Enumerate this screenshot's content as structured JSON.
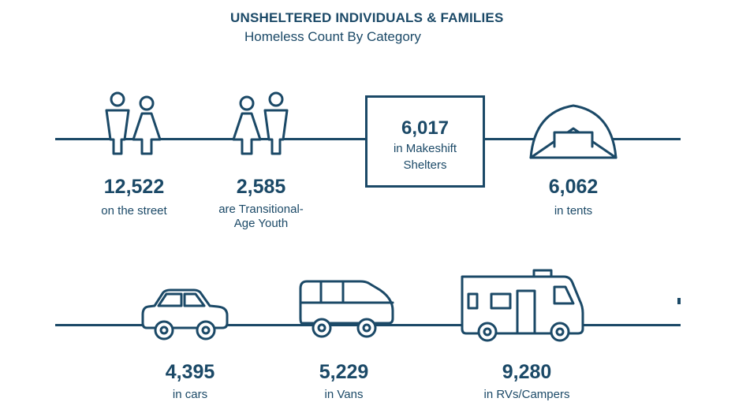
{
  "header": {
    "title": "UNSHELTERED INDIVIDUALS & FAMILIES",
    "subtitle": "Homeless Count By Category"
  },
  "categories": [
    {
      "id": "street",
      "number": "12,522",
      "label": "on the street",
      "icon": "two-people-icon"
    },
    {
      "id": "youth",
      "number": "2,585",
      "label_line1": "are Transitional-",
      "label_line2": "Age Youth",
      "icon": "two-people-icon"
    },
    {
      "id": "makeshift",
      "number": "6,017",
      "label_line1": "in Makeshift",
      "label_line2": "Shelters",
      "icon": "shelter-box"
    },
    {
      "id": "tents",
      "number": "6,062",
      "label": "in tents",
      "icon": "tent-icon"
    },
    {
      "id": "cars",
      "number": "4,395",
      "label": "in cars",
      "icon": "car-icon"
    },
    {
      "id": "vans",
      "number": "5,229",
      "label": "in Vans",
      "icon": "van-icon"
    },
    {
      "id": "rvs",
      "number": "9,280",
      "label": "in RVs/Campers",
      "icon": "rv-icon"
    }
  ],
  "colors": {
    "primary": "#1b4967",
    "background": "#ffffff"
  }
}
